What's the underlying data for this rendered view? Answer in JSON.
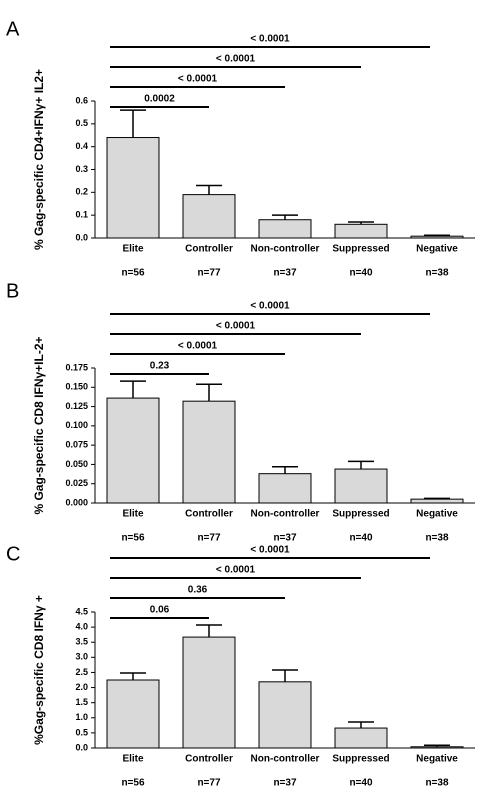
{
  "chart_data": [
    {
      "type": "bar",
      "panel": "A",
      "y_label": "% Gag-specific CD4+IFNγ+ IL2+",
      "color": "#d9d9d9",
      "categories": [
        "Elite",
        "Controller",
        "Non-controller",
        "Suppressed",
        "Negative"
      ],
      "n_labels": [
        "n=56",
        "n=77",
        "n=37",
        "n=40",
        "n=38"
      ],
      "values": [
        0.44,
        0.19,
        0.08,
        0.06,
        0.008
      ],
      "errors": [
        0.12,
        0.04,
        0.02,
        0.01,
        0.004
      ],
      "ylim": [
        0,
        0.6
      ],
      "yticks": [
        {
          "value": 0,
          "label": "0.0"
        },
        0.1,
        0.2,
        0.3,
        0.4,
        0.5,
        0.6
      ],
      "comparisons": [
        {
          "label": "0.0002",
          "span": [
            0,
            1
          ]
        },
        {
          "label": "< 0.0001",
          "span": [
            0,
            2
          ]
        },
        {
          "label": "< 0.0001",
          "span": [
            0,
            3
          ]
        },
        {
          "label": "< 0.0001",
          "span": [
            0,
            4
          ]
        }
      ]
    },
    {
      "type": "bar",
      "panel": "B",
      "y_label": "% Gag-specific CD8  IFNγ+IL-2+",
      "color": "#d9d9d9",
      "categories": [
        "Elite",
        "Controller",
        "Non-controller",
        "Suppressed",
        "Negative"
      ],
      "n_labels": [
        "n=56",
        "n=77",
        "n=37",
        "n=40",
        "n=38"
      ],
      "values": [
        0.136,
        0.132,
        0.038,
        0.044,
        0.005
      ],
      "errors": [
        0.022,
        0.022,
        0.009,
        0.01,
        0.001
      ],
      "ylim": [
        0,
        0.175
      ],
      "yticks": [
        {
          "value": 0,
          "label": "0.000"
        },
        0.025,
        {
          "value": 0.05,
          "label": "0.050"
        },
        0.075,
        {
          "value": 0.1,
          "label": "0.100"
        },
        0.125,
        {
          "value": 0.15,
          "label": "0.150"
        },
        0.175
      ],
      "comparisons": [
        {
          "label": "0.23",
          "span": [
            0,
            1
          ]
        },
        {
          "label": "< 0.0001",
          "span": [
            0,
            2
          ]
        },
        {
          "label": "< 0.0001",
          "span": [
            0,
            3
          ]
        },
        {
          "label": "< 0.0001",
          "span": [
            0,
            4
          ]
        }
      ]
    },
    {
      "type": "bar",
      "panel": "C",
      "y_label": "%Gag-specific CD8  IFNγ +",
      "color": "#d9d9d9",
      "categories": [
        "Elite",
        "Controller",
        "Non-controller",
        "Suppressed",
        "Negative"
      ],
      "n_labels": [
        "n=56",
        "n=77",
        "n=37",
        "n=40",
        "n=38"
      ],
      "values": [
        2.25,
        3.67,
        2.19,
        0.66,
        0.04
      ],
      "errors": [
        0.23,
        0.4,
        0.39,
        0.2,
        0.05
      ],
      "ylim": [
        0,
        4.5
      ],
      "yticks": [
        {
          "value": 0,
          "label": "0.0"
        },
        0.5,
        {
          "value": 1,
          "label": "1.0"
        },
        1.5,
        {
          "value": 2,
          "label": "2.0"
        },
        2.5,
        {
          "value": 3,
          "label": "3.0"
        },
        3.5,
        {
          "value": 4,
          "label": "4.0"
        },
        4.5
      ],
      "comparisons": [
        {
          "label": "0.06",
          "span": [
            0,
            1
          ]
        },
        {
          "label": "0.36",
          "span": [
            0,
            2
          ]
        },
        {
          "label": "< 0.0001",
          "span": [
            0,
            3
          ]
        },
        {
          "label": "< 0.0001",
          "span": [
            0,
            4
          ]
        }
      ]
    }
  ]
}
